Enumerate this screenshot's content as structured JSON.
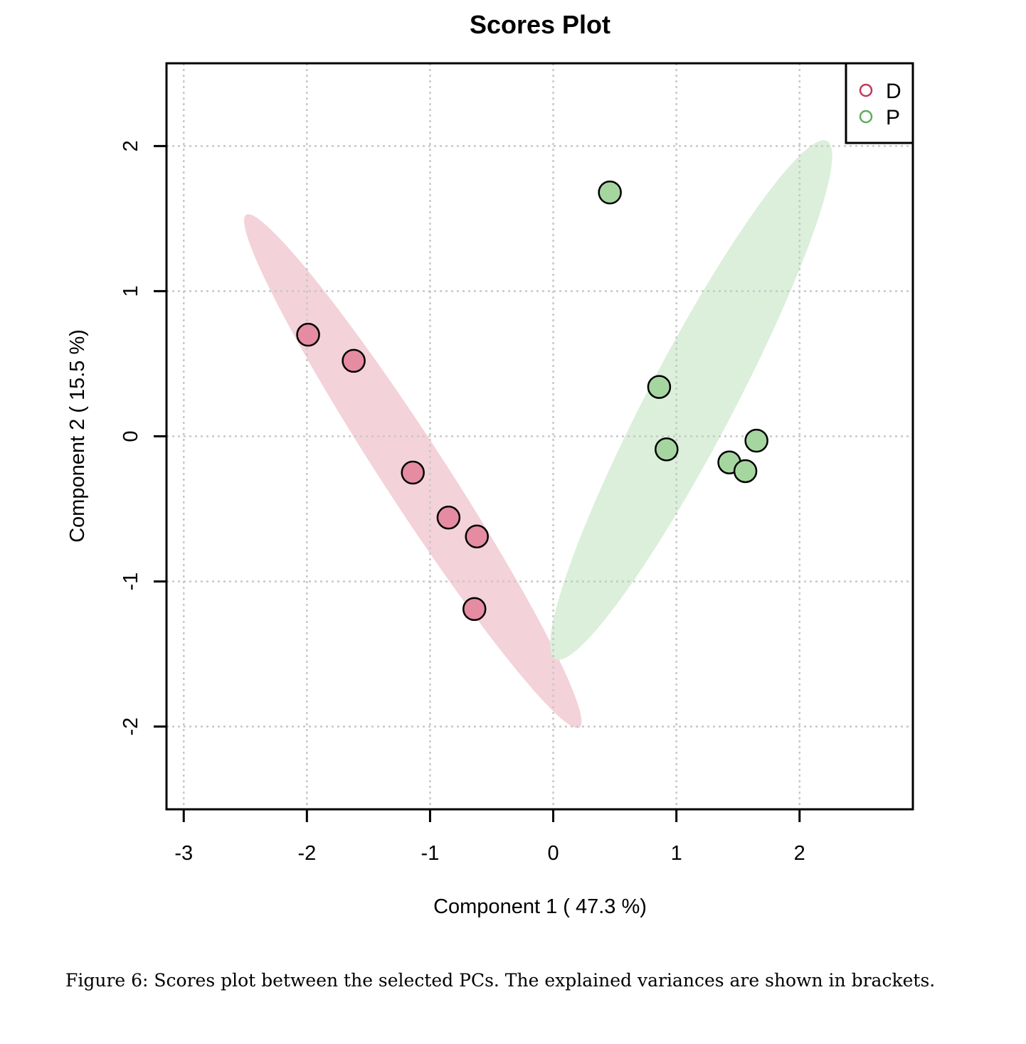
{
  "chart_data": {
    "type": "scatter",
    "title": "Scores Plot",
    "xlabel": "Component 1 ( 47.3 %)",
    "ylabel": "Component 2 ( 15.5 %)",
    "xlim": [
      -3.14,
      2.92
    ],
    "ylim": [
      -2.57,
      2.57
    ],
    "xticks": [
      -3,
      -2,
      -1,
      0,
      1,
      2
    ],
    "yticks": [
      -2,
      -1,
      0,
      1,
      2
    ],
    "xtick_labels": [
      "-3",
      "-2",
      "-1",
      "0",
      "1",
      "2"
    ],
    "ytick_labels": [
      "-2",
      "-1",
      "0",
      "1",
      "2"
    ],
    "grid": true,
    "legend_position": "top-right",
    "series": [
      {
        "name": "D",
        "color": "#c0395a",
        "fill": "#e58ca2",
        "ellipse_color": "#f4d2da",
        "ellipse_center": [
          -1.14,
          -0.24
        ],
        "ellipse_vertical_extent": [
          -2.0,
          1.54
        ],
        "ellipse_horizontal_extent": [
          -2.51,
          0.23
        ],
        "points": [
          [
            -1.99,
            0.7
          ],
          [
            -1.62,
            0.52
          ],
          [
            -1.14,
            -0.25
          ],
          [
            -0.85,
            -0.56
          ],
          [
            -0.62,
            -0.69
          ],
          [
            -0.64,
            -1.19
          ]
        ]
      },
      {
        "name": "P",
        "color": "#5fae5f",
        "fill": "#a6d6a0",
        "ellipse_color": "#dbefdb",
        "ellipse_center": [
          1.12,
          0.25
        ],
        "ellipse_vertical_extent": [
          -1.54,
          2.04
        ],
        "ellipse_horizontal_extent": [
          0.0,
          2.29
        ],
        "points": [
          [
            0.46,
            1.68
          ],
          [
            0.86,
            0.34
          ],
          [
            0.92,
            -0.09
          ],
          [
            1.43,
            -0.18
          ],
          [
            1.56,
            -0.24
          ],
          [
            1.65,
            -0.03
          ]
        ]
      }
    ]
  },
  "caption": "Figure 6: Scores plot between the selected PCs. The explained variances are shown in brackets."
}
